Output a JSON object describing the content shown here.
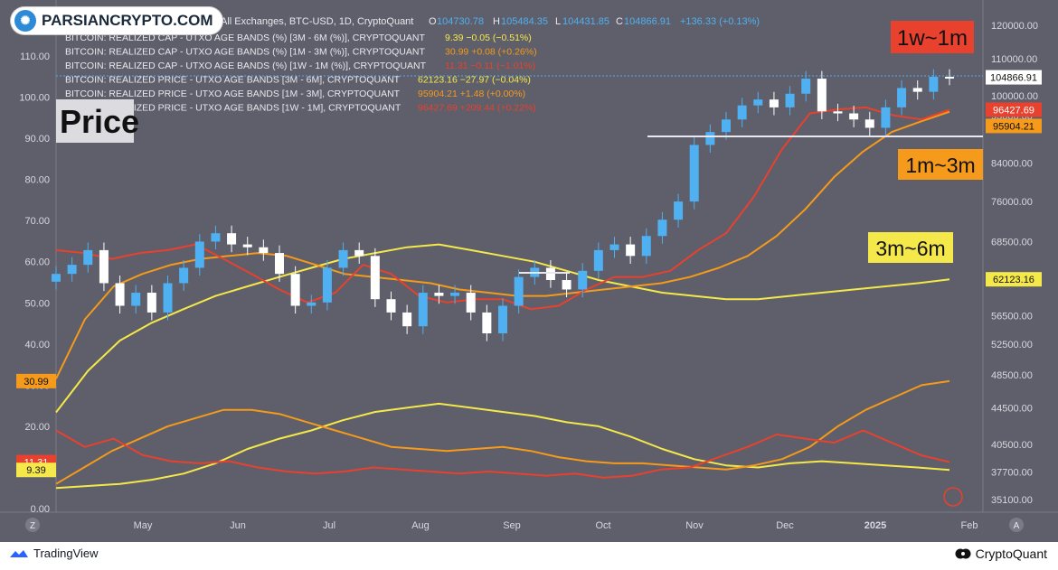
{
  "brand": {
    "name": "PARSIANCRYPTO.COM"
  },
  "header": {
    "symbol": "All Exchanges, BTC-USD, 1D, CryptoQuant",
    "o_label": "O",
    "o": "104730.78",
    "h_label": "H",
    "h": "105484.35",
    "l_label": "L",
    "l": "104431.85",
    "c_label": "C",
    "c": "104866.91",
    "change": "+136.33 (+0.13%)"
  },
  "legend": [
    {
      "label": "BITCOIN: REALIZED CAP - UTXO AGE BANDS (%) [3M - 6M (%)], CRYPTOQUANT",
      "value": "9.39  −0.05 (−0.51%)",
      "color": "#f5e84a"
    },
    {
      "label": "BITCOIN: REALIZED CAP - UTXO AGE BANDS (%) [1M - 3M (%)], CRYPTOQUANT",
      "value": "30.99  +0.08 (+0.26%)",
      "color": "#f59a1a"
    },
    {
      "label": "BITCOIN: REALIZED CAP - UTXO AGE BANDS (%) [1W - 1M (%)], CRYPTOQUANT",
      "value": "11.31  −0.11 (−1.01%)",
      "color": "#e8412e"
    },
    {
      "label": "BITCOIN: REALIZED PRICE - UTXO AGE BANDS [3M - 6M], CRYPTOQUANT",
      "value": "62123.16  −27.97 (−0.04%)",
      "color": "#f5e84a"
    },
    {
      "label": "BITCOIN: REALIZED PRICE - UTXO AGE BANDS [1M - 3M], CRYPTOQUANT",
      "value": "95904.21  +1.48 (+0.00%)",
      "color": "#f59a1a"
    },
    {
      "label": "BITCOIN: REALIZED PRICE - UTXO AGE BANDS [1W - 1M], CRYPTOQUANT",
      "value": "96427.69  +209.44 (+0.22%)",
      "color": "#e8412e"
    }
  ],
  "annotations": {
    "price": "Price",
    "band_1w": "1w~1m",
    "band_1m": "1m~3m",
    "band_3m": "3m~6m"
  },
  "footer": {
    "tradingview": "TradingView",
    "cryptoquant": "CryptoQuant",
    "z": "Z",
    "a": "A"
  },
  "colors": {
    "bg": "#5e5f6a",
    "candle_up": "#4fb0f2",
    "candle_down": "#ffffff",
    "red": "#e8412e",
    "orange": "#f59a1a",
    "yellow": "#f5e84a",
    "axis_bg": "#5e5f6a"
  },
  "chart_data": {
    "type": "line",
    "x_ticks": [
      "May",
      "Jun",
      "Jul",
      "Aug",
      "Sep",
      "Oct",
      "Nov",
      "Dec",
      "2025",
      "Feb"
    ],
    "left_axis": {
      "ticks": [
        "0.00",
        "10.00",
        "20.00",
        "30.00",
        "40.00",
        "50.00",
        "60.00",
        "70.00",
        "80.00",
        "90.00",
        "100.00",
        "110.00"
      ],
      "ylim": [
        0,
        113
      ]
    },
    "right_axis": {
      "scale": "log",
      "ticks": [
        "35100.00",
        "37700.00",
        "40500.00",
        "44500.00",
        "48500.00",
        "52500.00",
        "56500.00",
        "62500.00",
        "68500.00",
        "76000.00",
        "84000.00",
        "95000.00",
        "100000.00",
        "110000.00",
        "120000.00"
      ]
    },
    "x_month_index": [
      0,
      1,
      2,
      3,
      4,
      5,
      6,
      7,
      8,
      9,
      10
    ],
    "price_close": [
      63000,
      64500,
      67000,
      61500,
      58000,
      60000,
      57000,
      61500,
      64000,
      68500,
      70000,
      68000,
      67500,
      66500,
      63000,
      58000,
      58500,
      64000,
      67000,
      66000,
      59000,
      57000,
      55000,
      60000,
      59500,
      60000,
      57000,
      54000,
      58000,
      62500,
      64000,
      62000,
      60500,
      63500,
      67000,
      68000,
      66000,
      69500,
      72500,
      76000,
      88000,
      91000,
      94000,
      97500,
      99000,
      97000,
      100500,
      104500,
      96000,
      95500,
      94000,
      92000,
      97000,
      102000,
      101000,
      105000,
      104866.91
    ],
    "price_series_months": [
      0,
      10
    ],
    "series": [
      {
        "name": "BITCOIN: REALIZED CAP - UTXO AGE BANDS (%) [3M - 6M (%)], CRYPTOQUANT",
        "axis": "left",
        "values": [
          5.0,
          5.5,
          6.0,
          7.0,
          8.5,
          11.0,
          14.5,
          17.0,
          19.0,
          21.5,
          23.5,
          24.5,
          25.5,
          24.5,
          23.5,
          22.5,
          21.0,
          20.0,
          17.5,
          14.5,
          12.0,
          10.5,
          10.0,
          11.0,
          11.5,
          11.0,
          10.5,
          10.0,
          9.39
        ]
      },
      {
        "name": "BITCOIN: REALIZED CAP - UTXO AGE BANDS (%) [1M - 3M (%)], CRYPTOQUANT",
        "axis": "left",
        "values": [
          6.0,
          10.0,
          14.0,
          17.0,
          20.0,
          22.0,
          24.0,
          24.0,
          23.0,
          21.0,
          19.0,
          17.0,
          15.0,
          14.5,
          14.0,
          14.5,
          15.0,
          14.0,
          12.5,
          11.5,
          11.0,
          11.0,
          10.5,
          10.0,
          9.5,
          10.5,
          12.0,
          15.0,
          20.0,
          24.0,
          27.0,
          30.0,
          30.99
        ]
      },
      {
        "name": "BITCOIN: REALIZED CAP - UTXO AGE BANDS (%) [1W - 1M (%)], CRYPTOQUANT",
        "axis": "left",
        "values": [
          19.0,
          15.0,
          17.0,
          13.0,
          11.5,
          11.0,
          11.5,
          10.0,
          9.0,
          8.5,
          9.0,
          10.0,
          9.5,
          9.0,
          8.5,
          9.0,
          8.5,
          8.0,
          8.5,
          7.5,
          8.0,
          9.5,
          10.0,
          12.5,
          15.0,
          18.0,
          17.0,
          16.0,
          19.0,
          16.0,
          13.0,
          11.31
        ]
      },
      {
        "name": "BITCOIN: REALIZED PRICE - UTXO AGE BANDS [3M - 6M], CRYPTOQUANT",
        "axis": "right",
        "values": [
          44000,
          49000,
          53000,
          55500,
          57500,
          59500,
          61000,
          62500,
          64000,
          65500,
          66500,
          67500,
          68000,
          67000,
          66000,
          65000,
          63500,
          62000,
          61000,
          60000,
          59500,
          59000,
          59000,
          59500,
          60000,
          60500,
          61000,
          61500,
          62123.16
        ]
      },
      {
        "name": "BITCOIN: REALIZED PRICE - UTXO AGE BANDS [1M - 3M], CRYPTOQUANT",
        "axis": "right",
        "values": [
          48000,
          56000,
          61000,
          63000,
          64500,
          65500,
          66000,
          66500,
          66000,
          64500,
          63000,
          62500,
          62000,
          61500,
          60500,
          60000,
          59500,
          59500,
          60000,
          60500,
          61000,
          61500,
          62500,
          64000,
          66000,
          69500,
          74500,
          81000,
          86500,
          91000,
          93500,
          95904.21
        ]
      },
      {
        "name": "BITCOIN: REALIZED PRICE - UTXO AGE BANDS [1W - 1M], CRYPTOQUANT",
        "axis": "right",
        "values": [
          67000,
          66500,
          65500,
          66500,
          67000,
          68000,
          65500,
          63000,
          60500,
          58500,
          60000,
          64500,
          63000,
          59500,
          58500,
          59000,
          59000,
          57500,
          58000,
          60500,
          62500,
          62500,
          63500,
          67000,
          70000,
          77000,
          87000,
          95500,
          96500,
          97000,
          95000,
          94000,
          96427.69
        ]
      }
    ]
  }
}
